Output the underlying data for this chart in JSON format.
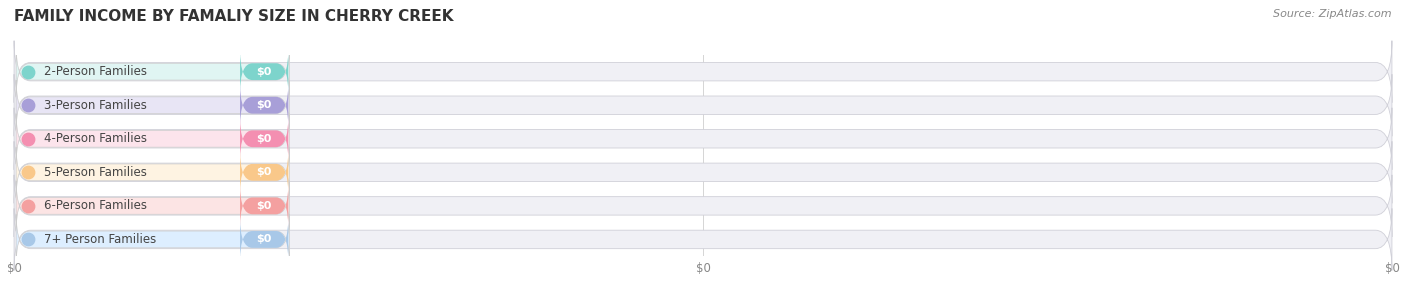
{
  "title": "FAMILY INCOME BY FAMALIY SIZE IN CHERRY CREEK",
  "source": "Source: ZipAtlas.com",
  "categories": [
    "2-Person Families",
    "3-Person Families",
    "4-Person Families",
    "5-Person Families",
    "6-Person Families",
    "7+ Person Families"
  ],
  "values": [
    0,
    0,
    0,
    0,
    0,
    0
  ],
  "bar_colors": [
    "#7dd4cc",
    "#a89fd8",
    "#f48fb1",
    "#f9c88a",
    "#f4a0a0",
    "#a8c8e8"
  ],
  "label_bg_colors": [
    "#e0f5f3",
    "#e8e5f5",
    "#fce4ec",
    "#fef3e2",
    "#fce4e4",
    "#ddeeff"
  ],
  "dot_colors": [
    "#7dd4cc",
    "#a89fd8",
    "#f48fb1",
    "#f9c88a",
    "#f4a0a0",
    "#a8c8e8"
  ],
  "title_fontsize": 11,
  "label_fontsize": 8.5,
  "value_fontsize": 8,
  "source_fontsize": 8,
  "xlim_max": 100,
  "xtick_positions": [
    0,
    50,
    100
  ],
  "xtick_labels": [
    "$0",
    "$0",
    "$0"
  ]
}
